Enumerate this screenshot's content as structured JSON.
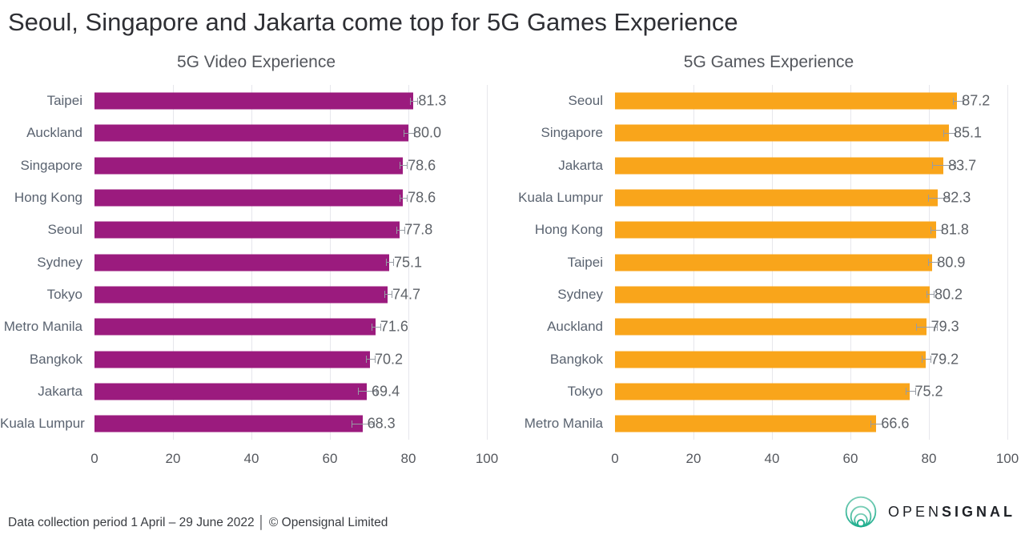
{
  "page": {
    "title": "Seoul, Singapore and Jakarta come top for 5G Games Experience",
    "footer": "Data collection period 1 April – 29 June 2022  │  © Opensignal Limited",
    "logo": {
      "icon": "opensignal-concentric-circles-icon",
      "icon_color": "#2FB79A",
      "word_light": "OPEN",
      "word_bold": "SIGNAL"
    }
  },
  "chart_data": [
    {
      "type": "bar",
      "orientation": "horizontal",
      "title": "5G Video Experience",
      "categories": [
        "Taipei",
        "Auckland",
        "Singapore",
        "Hong Kong",
        "Seoul",
        "Sydney",
        "Tokyo",
        "Metro Manila",
        "Bangkok",
        "Jakarta",
        "Kuala Lumpur"
      ],
      "values": [
        81.3,
        80.0,
        78.6,
        78.6,
        77.8,
        75.1,
        74.7,
        71.6,
        70.2,
        69.4,
        68.3
      ],
      "value_labels": [
        "81.3",
        "80.0",
        "78.6",
        "78.6",
        "77.8",
        "75.1",
        "74.7",
        "71.6",
        "70.2",
        "69.4",
        "68.3"
      ],
      "errors": [
        0.8,
        1.3,
        0.8,
        0.8,
        0.9,
        0.8,
        0.9,
        1.0,
        1.0,
        2.2,
        2.8
      ],
      "bar_color": "#9B1B7E",
      "xlim": [
        0,
        100
      ],
      "xticks": [
        0,
        20,
        40,
        60,
        80,
        100
      ],
      "grid": "vertical",
      "legend": "none"
    },
    {
      "type": "bar",
      "orientation": "horizontal",
      "title": "5G Games Experience",
      "categories": [
        "Seoul",
        "Singapore",
        "Jakarta",
        "Kuala Lumpur",
        "Hong Kong",
        "Taipei",
        "Sydney",
        "Auckland",
        "Bangkok",
        "Tokyo",
        "Metro Manila"
      ],
      "values": [
        87.2,
        85.1,
        83.7,
        82.3,
        81.8,
        80.9,
        80.2,
        79.3,
        79.2,
        75.2,
        66.6
      ],
      "value_labels": [
        "87.2",
        "85.1",
        "83.7",
        "82.3",
        "81.8",
        "80.9",
        "80.2",
        "79.3",
        "79.2",
        "75.2",
        "66.6"
      ],
      "errors": [
        1.1,
        1.4,
        2.8,
        2.6,
        1.3,
        1.1,
        0.9,
        2.5,
        1.1,
        1.2,
        1.4
      ],
      "bar_color": "#F9A51B",
      "xlim": [
        0,
        100
      ],
      "xticks": [
        0,
        20,
        40,
        60,
        80,
        100
      ],
      "grid": "vertical",
      "legend": "none"
    }
  ]
}
